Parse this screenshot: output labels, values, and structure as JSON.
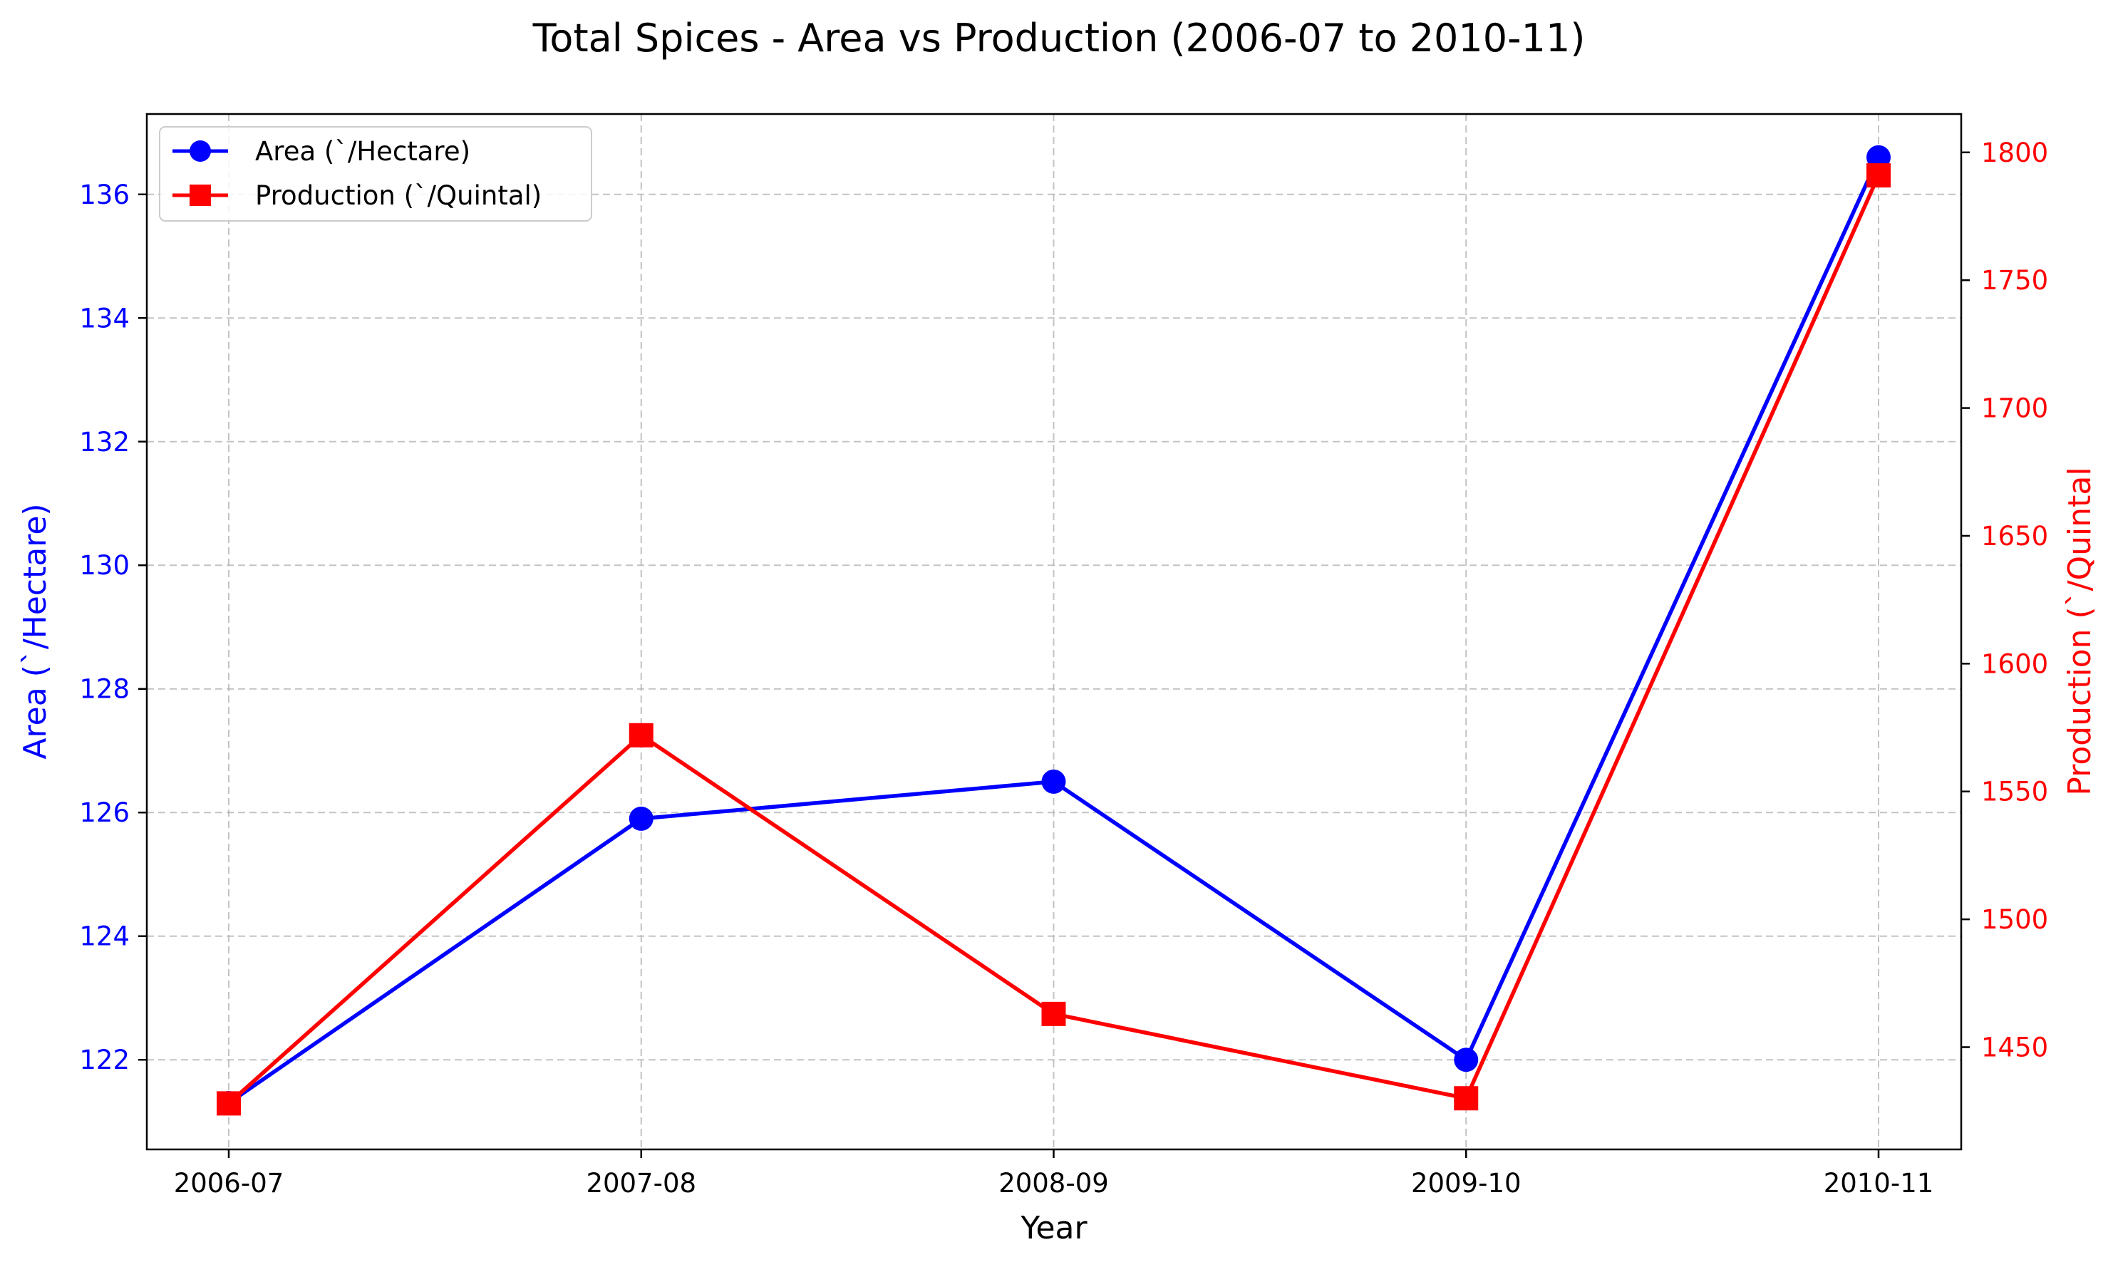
{
  "chart_data": {
    "type": "line",
    "title": "Total Spices - Area vs Production (2006-07 to 2010-11)",
    "xlabel": "Year",
    "categories": [
      "2006-07",
      "2007-08",
      "2008-09",
      "2009-10",
      "2010-11"
    ],
    "grid": true,
    "legend_position": "top-left",
    "y_left": {
      "label": "Area (`/Hectare)",
      "color": "#0000ff",
      "ylim": [
        120.55,
        137.3
      ],
      "ticks": [
        122,
        124,
        126,
        128,
        130,
        132,
        134,
        136
      ],
      "tick_labels": [
        "122",
        "124",
        "126",
        "128",
        "130",
        "132",
        "134",
        "136"
      ]
    },
    "y_right": {
      "label": "Production (`/Quintal",
      "color": "#ff0000",
      "ylim": [
        1410,
        1815
      ],
      "ticks": [
        1450,
        1500,
        1550,
        1600,
        1650,
        1700,
        1750,
        1800
      ],
      "tick_labels": [
        "1450",
        "1500",
        "1550",
        "1600",
        "1650",
        "1700",
        "1750",
        "1800"
      ]
    },
    "series": [
      {
        "name": "Area (`/Hectare)",
        "axis": "left",
        "color": "#0000ff",
        "marker": "circle",
        "values": [
          121.3,
          125.9,
          126.5,
          122.0,
          136.6
        ]
      },
      {
        "name": "Production (`/Quintal)",
        "axis": "right",
        "color": "#ff0000",
        "marker": "square",
        "values": [
          1428,
          1572,
          1463,
          1430,
          1791
        ]
      }
    ]
  }
}
